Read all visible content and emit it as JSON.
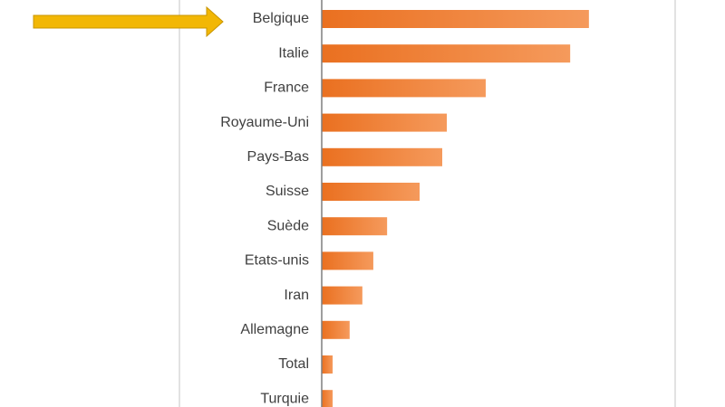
{
  "chart_data": {
    "type": "barh",
    "categories": [
      "Belgique",
      "Italie",
      "France",
      "Royaume-Uni",
      "Pays-Bas",
      "Suisse",
      "Suède",
      "Etats-unis",
      "Iran",
      "Allemagne",
      "Total",
      "Turquie"
    ],
    "values": [
      75.6,
      70.3,
      46.4,
      35.4,
      34.1,
      27.7,
      18.5,
      14.6,
      11.5,
      7.9,
      3.1,
      3.1
    ],
    "color": "#ed7d31",
    "xlim": [
      0,
      100
    ]
  }
}
